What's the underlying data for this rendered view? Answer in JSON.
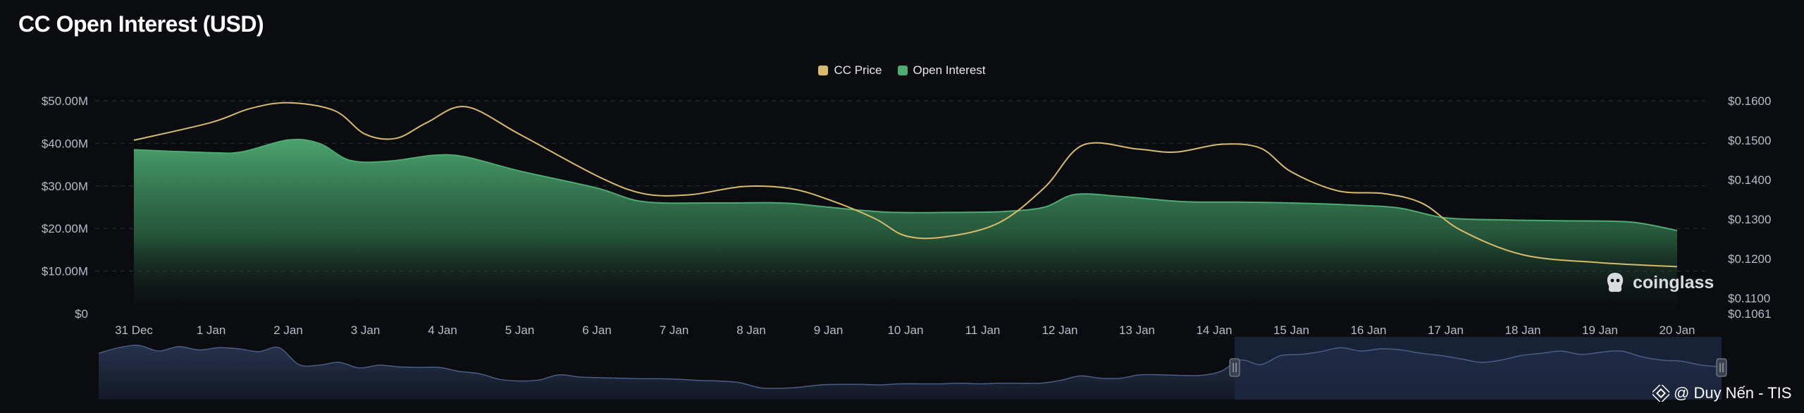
{
  "title": "CC Open Interest (USD)",
  "legend": {
    "items": [
      {
        "label": "CC Price",
        "color": "#d6bb6d"
      },
      {
        "label": "Open Interest",
        "color": "#4eaa72"
      }
    ]
  },
  "watermark": {
    "text": "coinglass",
    "icon": "coinglass-logo-icon"
  },
  "credit": {
    "text": "@ Duy Nến - TIS",
    "icon": "binance-logo-icon"
  },
  "colors": {
    "background": "#0b0c10",
    "open_interest": "#4eaa72",
    "price": "#d6bb6d",
    "navigator_selection": "#1d2a44",
    "navigator_line": "#4a5d86"
  },
  "chart_data": {
    "type": "area",
    "x_labels": [
      "31 Dec",
      "1 Jan",
      "2 Jan",
      "3 Jan",
      "4 Jan",
      "5 Jan",
      "6 Jan",
      "7 Jan",
      "8 Jan",
      "9 Jan",
      "10 Jan",
      "11 Jan",
      "12 Jan",
      "13 Jan",
      "14 Jan",
      "15 Jan",
      "16 Jan",
      "17 Jan",
      "18 Jan",
      "19 Jan",
      "20 Jan"
    ],
    "y_left": {
      "ticks": [
        "$0",
        "$10.00M",
        "$20.00M",
        "$30.00M",
        "$40.00M",
        "$50.00M"
      ],
      "range": [
        0,
        50
      ]
    },
    "y_right": {
      "ticks": [
        "$0.1061",
        "$0.1100",
        "$0.1200",
        "$0.1300",
        "$0.1400",
        "$0.1500",
        "$0.1600"
      ],
      "range": [
        0.1061,
        0.16
      ]
    },
    "series": [
      {
        "name": "Open Interest",
        "axis": "left",
        "x": [
          0,
          1,
          1.4,
          2,
          2.4,
          2.8,
          3.3,
          3.9,
          4.3,
          5,
          6,
          6.6,
          7.5,
          8.4,
          9,
          9.8,
          10.8,
          11.3,
          11.8,
          12.2,
          12.8,
          13.6,
          14.3,
          15,
          15.8,
          16.4,
          17,
          17.8,
          18.5,
          19.4,
          20
        ],
        "values": [
          38.5,
          37.8,
          38.0,
          40.8,
          40.0,
          36.0,
          35.8,
          37.2,
          36.8,
          33.5,
          29.5,
          26.3,
          26.0,
          26.0,
          25.0,
          23.8,
          23.8,
          24.0,
          25.0,
          28.0,
          27.5,
          26.3,
          26.2,
          26.0,
          25.5,
          24.8,
          22.5,
          22.0,
          21.8,
          21.5,
          19.5
        ]
      },
      {
        "name": "CC Price",
        "axis": "right",
        "x": [
          0,
          1,
          1.5,
          2,
          2.6,
          3,
          3.4,
          3.8,
          4.3,
          5,
          6,
          6.6,
          7.2,
          7.9,
          8.5,
          9,
          9.6,
          10,
          10.5,
          11.2,
          11.8,
          12.3,
          13,
          13.5,
          14.1,
          14.6,
          15,
          15.6,
          16.2,
          16.7,
          17.2,
          18,
          19,
          20
        ],
        "values": [
          0.15,
          0.1545,
          0.158,
          0.1595,
          0.1575,
          0.1515,
          0.1505,
          0.1545,
          0.1585,
          0.1515,
          0.141,
          0.1365,
          0.1362,
          0.1383,
          0.1378,
          0.135,
          0.1302,
          0.1258,
          0.1255,
          0.129,
          0.138,
          0.1488,
          0.1478,
          0.147,
          0.149,
          0.148,
          0.142,
          0.1372,
          0.1365,
          0.134,
          0.1272,
          0.121,
          0.119,
          0.118
        ]
      }
    ],
    "grid": true
  },
  "navigator": {
    "values": [
      0.82,
      0.92,
      0.96,
      0.86,
      0.94,
      0.88,
      0.92,
      0.9,
      0.85,
      0.92,
      0.62,
      0.61,
      0.66,
      0.56,
      0.61,
      0.58,
      0.57,
      0.57,
      0.5,
      0.46,
      0.36,
      0.33,
      0.35,
      0.44,
      0.4,
      0.39,
      0.38,
      0.37,
      0.37,
      0.36,
      0.34,
      0.33,
      0.3,
      0.21,
      0.2,
      0.22,
      0.26,
      0.27,
      0.27,
      0.26,
      0.28,
      0.28,
      0.28,
      0.29,
      0.28,
      0.29,
      0.29,
      0.29,
      0.34,
      0.42,
      0.38,
      0.38,
      0.44,
      0.44,
      0.43,
      0.43,
      0.5,
      0.7,
      0.62,
      0.78,
      0.8,
      0.85,
      0.92,
      0.86,
      0.9,
      0.88,
      0.82,
      0.78,
      0.72,
      0.66,
      0.7,
      0.78,
      0.82,
      0.86,
      0.8,
      0.84,
      0.86,
      0.76,
      0.7,
      0.68,
      0.61,
      0.58
    ],
    "selection": [
      0.7,
      1.0
    ]
  }
}
